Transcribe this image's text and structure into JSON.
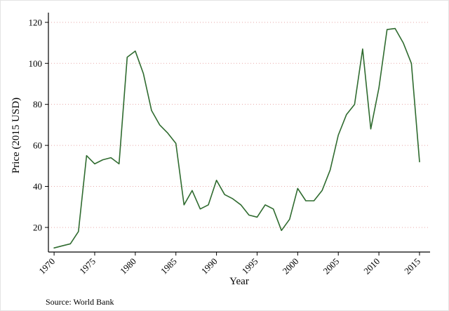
{
  "figure": {
    "background": "#ffffff",
    "source_note": "Source: World Bank"
  },
  "chart_data": {
    "type": "line",
    "title": "",
    "xlabel": "Year",
    "ylabel": "Price (2015 USD)",
    "legend": "none",
    "grid": "horizontal-dotted",
    "line_color": "#2f6b2f",
    "grid_color": "#e8a8a8",
    "axis_color": "#000000",
    "xlim": [
      1969.3,
      2016.3
    ],
    "ylim": [
      8,
      122
    ],
    "x_ticks": [
      1970,
      1975,
      1980,
      1985,
      1990,
      1995,
      2000,
      2005,
      2010,
      2015
    ],
    "y_ticks": [
      20,
      40,
      60,
      80,
      100,
      120
    ],
    "x": [
      1970,
      1971,
      1972,
      1973,
      1974,
      1975,
      1976,
      1977,
      1978,
      1979,
      1980,
      1981,
      1982,
      1983,
      1984,
      1985,
      1986,
      1987,
      1988,
      1989,
      1990,
      1991,
      1992,
      1993,
      1994,
      1995,
      1996,
      1997,
      1998,
      1999,
      2000,
      2001,
      2002,
      2003,
      2004,
      2005,
      2006,
      2007,
      2008,
      2009,
      2010,
      2011,
      2012,
      2013,
      2014,
      2015
    ],
    "values": [
      10,
      11,
      12,
      18,
      55,
      51,
      53,
      54,
      51,
      103,
      106,
      95,
      77,
      70,
      66,
      61,
      31,
      38,
      29,
      31,
      43,
      36,
      34,
      31,
      26,
      25,
      31,
      29,
      18.5,
      24,
      39,
      33,
      33,
      38,
      48,
      65,
      75,
      80,
      107,
      68,
      88,
      116.5,
      117,
      110,
      100,
      52
    ]
  }
}
